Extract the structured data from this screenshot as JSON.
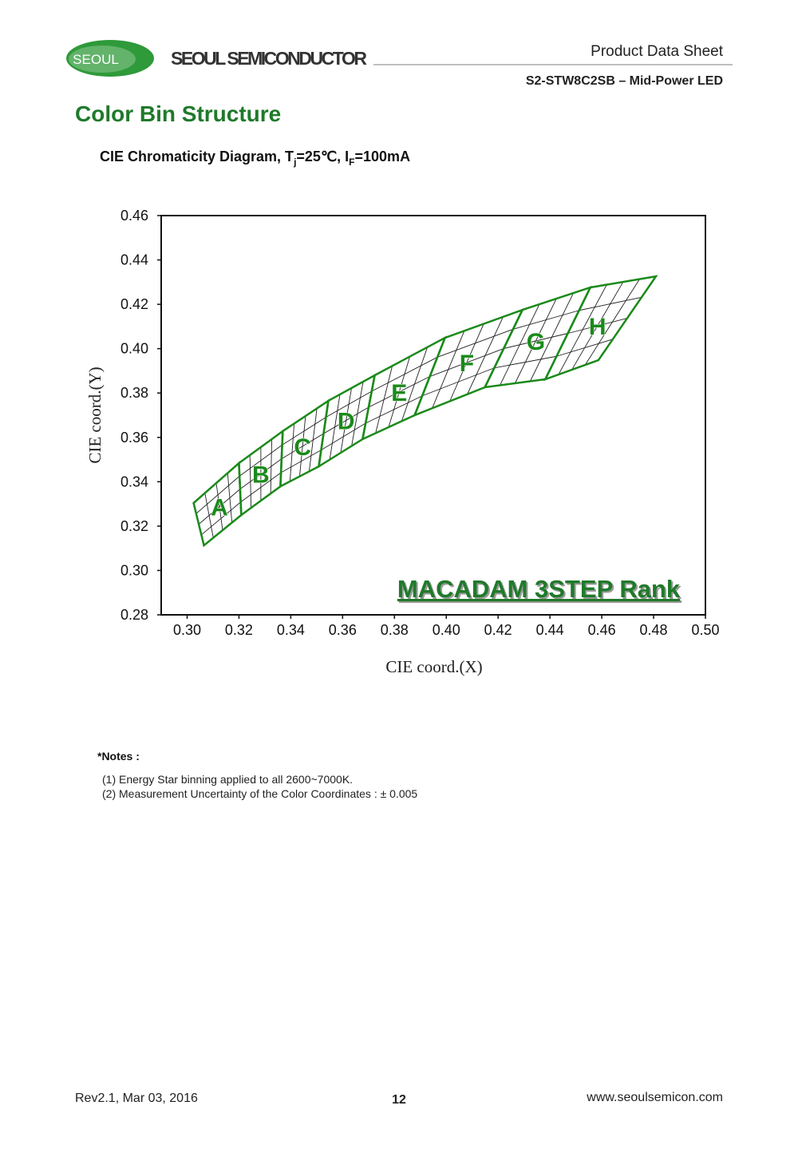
{
  "header": {
    "logo": "SEOUL",
    "company": "SEOUL SEMICONDUCTOR",
    "doc_type": "Product Data Sheet",
    "product": "S2-STW8C2SB – Mid-Power LED"
  },
  "section_title": "Color Bin Structure",
  "chart_data": {
    "type": "bins",
    "title": [
      "CIE Chromaticity Diagram, T",
      "j",
      "=25℃, I",
      "F",
      "=100mA"
    ],
    "x_label": "CIE coord.(X)",
    "y_label": "CIE coord.(Y)",
    "annotation": "MACADAM 3STEP Rank",
    "color": "#1a8a1a",
    "xlim": [
      0.29,
      0.5
    ],
    "ylim": [
      0.28,
      0.46
    ],
    "xticks": [
      {
        "value": 0.3,
        "label": "0.30"
      },
      0.32,
      0.34,
      0.36,
      0.38,
      {
        "value": 0.4,
        "label": "0.40"
      },
      0.42,
      0.44,
      0.46,
      0.48,
      {
        "value": 0.5,
        "label": "0.50"
      }
    ],
    "yticks": [
      0.28,
      {
        "value": 0.3,
        "label": "0.30"
      },
      0.32,
      0.34,
      0.36,
      0.38,
      {
        "value": 0.4,
        "label": "0.40"
      },
      0.42,
      0.44,
      0.46
    ],
    "bins": [
      {
        "label": "A",
        "x": [
          0.3065,
          0.3025,
          0.32,
          0.3209
        ],
        "y": [
          0.3113,
          0.3304,
          0.3484,
          0.325
        ]
      },
      {
        "label": "B",
        "x": [
          0.3209,
          0.32,
          0.3369,
          0.336
        ],
        "y": [
          0.325,
          0.3484,
          0.3628,
          0.3379
        ]
      },
      {
        "label": "C",
        "x": [
          0.336,
          0.3369,
          0.3545,
          0.3508
        ],
        "y": [
          0.3379,
          0.3628,
          0.3765,
          0.3469
        ]
      },
      {
        "label": "D",
        "x": [
          0.3508,
          0.3545,
          0.3724,
          0.3677
        ],
        "y": [
          0.3469,
          0.3765,
          0.388,
          0.3592
        ]
      },
      {
        "label": "E",
        "x": [
          0.3677,
          0.3724,
          0.3995,
          0.3878
        ],
        "y": [
          0.3592,
          0.388,
          0.4049,
          0.37
        ]
      },
      {
        "label": "F",
        "x": [
          0.3878,
          0.3995,
          0.4294,
          0.4149
        ],
        "y": [
          0.37,
          0.4049,
          0.4175,
          0.3826
        ]
      },
      {
        "label": "G",
        "x": [
          0.4149,
          0.4294,
          0.4556,
          0.4382
        ],
        "y": [
          0.3826,
          0.4175,
          0.4276,
          0.3862
        ]
      },
      {
        "label": "H",
        "x": [
          0.4382,
          0.4556,
          0.4809,
          0.4587
        ],
        "y": [
          0.3862,
          0.4276,
          0.4326,
          0.3948
        ]
      }
    ]
  },
  "notes": {
    "heading": "*Notes :",
    "items": [
      "(1) Energy Star binning applied to all 2600~7000K.",
      "(2) Measurement Uncertainty of the Color Coordinates : ± 0.005"
    ]
  },
  "footer": {
    "revision": "Rev2.1, Mar 03, 2016",
    "page": "12",
    "website": "www.seoulsemicon.com"
  }
}
